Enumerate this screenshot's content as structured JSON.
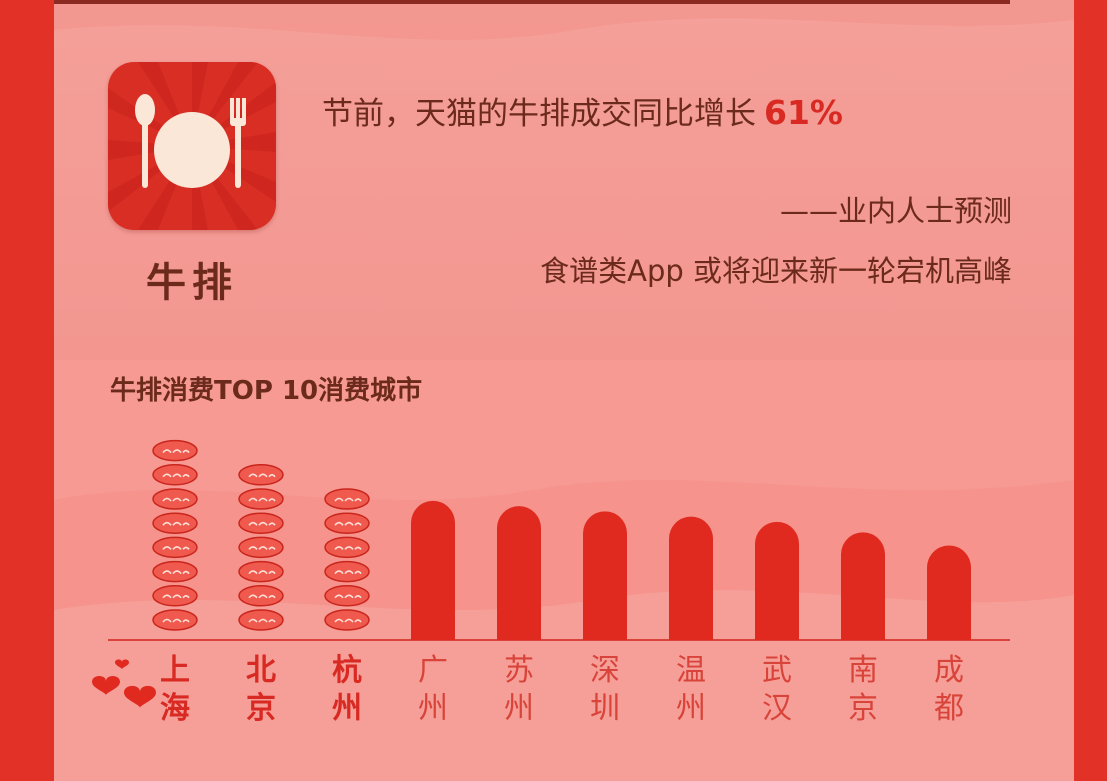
{
  "colors": {
    "frame": "#e23127",
    "panel": "#f79a93",
    "bar": "#e02a20",
    "text": "#6b2a1c",
    "accent": "#d82a22",
    "steak": "#f05a4e"
  },
  "product": {
    "label": "牛排",
    "icon": "plate-spoon-fork-icon"
  },
  "headline": {
    "text": "节前，天猫的牛排成交同比增长",
    "percent": "61%"
  },
  "attribution": "——业内人士预测",
  "prediction": "食谱类App 或将迎来新一轮宕机高峰",
  "chart_data": {
    "type": "bar",
    "title": "牛排消费TOP 10消费城市",
    "categories": [
      "上海",
      "北京",
      "杭州",
      "广州",
      "苏州",
      "深圳",
      "温州",
      "武汉",
      "南京",
      "成都"
    ],
    "values": [
      8,
      7,
      6,
      5.3,
      5.1,
      4.9,
      4.7,
      4.5,
      4.1,
      3.6
    ],
    "highlighted_top": 3,
    "top_style": "stacked-steak-icons",
    "decoration": "hearts-icon"
  }
}
